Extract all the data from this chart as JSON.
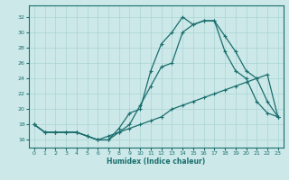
{
  "xlabel": "Humidex (Indice chaleur)",
  "bg_color": "#cce8e8",
  "grid_color": "#aad4d4",
  "line_color": "#1a6e6e",
  "xlim": [
    -0.5,
    23.5
  ],
  "ylim": [
    15.0,
    33.5
  ],
  "xticks": [
    0,
    1,
    2,
    3,
    4,
    5,
    6,
    7,
    8,
    9,
    10,
    11,
    12,
    13,
    14,
    15,
    16,
    17,
    18,
    19,
    20,
    21,
    22,
    23
  ],
  "yticks": [
    16,
    18,
    20,
    22,
    24,
    26,
    28,
    30,
    32
  ],
  "line1_x": [
    0,
    1,
    2,
    3,
    4,
    5,
    6,
    7,
    8,
    9,
    10,
    11,
    12,
    13,
    14,
    15,
    16,
    17,
    18,
    19,
    20,
    21,
    22,
    23
  ],
  "line1_y": [
    18,
    17,
    17,
    17,
    17,
    16.5,
    16,
    16,
    17,
    17.5,
    18,
    18.5,
    19,
    20,
    20.5,
    21,
    21.5,
    22,
    22.5,
    23,
    23.5,
    24,
    24.5,
    19
  ],
  "line2_x": [
    0,
    1,
    2,
    3,
    4,
    5,
    6,
    7,
    8,
    9,
    10,
    11,
    12,
    13,
    14,
    15,
    16,
    17,
    18,
    19,
    20,
    21,
    22,
    23
  ],
  "line2_y": [
    18,
    17,
    17,
    17,
    17,
    16.5,
    16,
    16.5,
    17,
    18,
    20.5,
    23,
    25.5,
    26,
    30,
    31,
    31.5,
    31.5,
    27.5,
    25,
    24,
    21,
    19.5,
    19
  ],
  "line3_x": [
    0,
    1,
    2,
    3,
    4,
    5,
    6,
    7,
    8,
    9,
    10,
    11,
    12,
    13,
    14,
    15,
    16,
    17,
    18,
    19,
    20,
    21,
    22,
    23
  ],
  "line3_y": [
    18,
    17,
    17,
    17,
    17,
    16.5,
    16,
    16,
    17.5,
    19.5,
    20,
    25,
    28.5,
    30,
    32,
    31,
    31.5,
    31.5,
    29.5,
    27.5,
    25,
    24,
    21,
    19
  ]
}
